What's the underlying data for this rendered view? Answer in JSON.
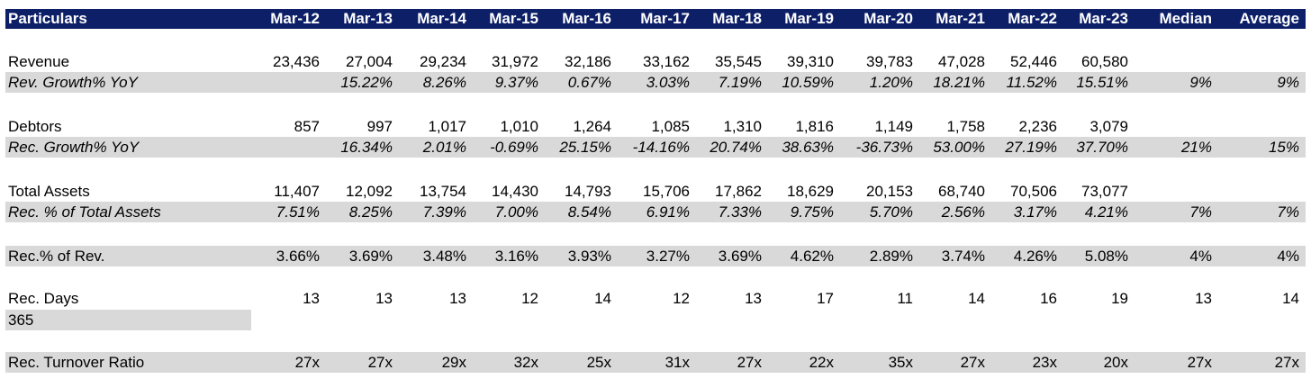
{
  "header": {
    "label": "Particulars",
    "columns": [
      "Mar-12",
      "Mar-13",
      "Mar-14",
      "Mar-15",
      "Mar-16",
      "Mar-17",
      "Mar-18",
      "Mar-19",
      "Mar-20",
      "Mar-21",
      "Mar-22",
      "Mar-23",
      "Median",
      "Average"
    ]
  },
  "rows": [
    {
      "label": "Revenue",
      "values": [
        "23,436",
        "27,004",
        "29,234",
        "31,972",
        "32,186",
        "33,162",
        "35,545",
        "39,310",
        "39,783",
        "47,028",
        "52,446",
        "60,580",
        "",
        ""
      ]
    },
    {
      "label": "Rev. Growth% YoY",
      "values": [
        "",
        "15.22%",
        "8.26%",
        "9.37%",
        "0.67%",
        "3.03%",
        "7.19%",
        "10.59%",
        "1.20%",
        "18.21%",
        "11.52%",
        "15.51%",
        "9%",
        "9%"
      ]
    },
    {
      "label": "Debtors",
      "values": [
        "857",
        "997",
        "1,017",
        "1,010",
        "1,264",
        "1,085",
        "1,310",
        "1,816",
        "1,149",
        "1,758",
        "2,236",
        "3,079",
        "",
        ""
      ]
    },
    {
      "label": "Rec. Growth% YoY",
      "values": [
        "",
        "16.34%",
        "2.01%",
        "-0.69%",
        "25.15%",
        "-14.16%",
        "20.74%",
        "38.63%",
        "-36.73%",
        "53.00%",
        "27.19%",
        "37.70%",
        "21%",
        "15%"
      ]
    },
    {
      "label": "Total Assets",
      "values": [
        "11,407",
        "12,092",
        "13,754",
        "14,430",
        "14,793",
        "15,706",
        "17,862",
        "18,629",
        "20,153",
        "68,740",
        "70,506",
        "73,077",
        "",
        ""
      ]
    },
    {
      "label": "Rec. % of Total Assets",
      "values": [
        "7.51%",
        "8.25%",
        "7.39%",
        "7.00%",
        "8.54%",
        "6.91%",
        "7.33%",
        "9.75%",
        "5.70%",
        "2.56%",
        "3.17%",
        "4.21%",
        "7%",
        "7%"
      ]
    },
    {
      "label": "Rec.% of Rev.",
      "values": [
        "3.66%",
        "3.69%",
        "3.48%",
        "3.16%",
        "3.93%",
        "3.27%",
        "3.69%",
        "4.62%",
        "2.89%",
        "3.74%",
        "4.26%",
        "5.08%",
        "4%",
        "4%"
      ]
    },
    {
      "label": "Rec. Days",
      "values": [
        "13",
        "13",
        "13",
        "12",
        "14",
        "12",
        "13",
        "17",
        "11",
        "14",
        "16",
        "19",
        "13",
        "14"
      ]
    },
    {
      "label": "Rec. Turnover Ratio",
      "values": [
        "27x",
        "27x",
        "29x",
        "32x",
        "25x",
        "31x",
        "27x",
        "22x",
        "35x",
        "27x",
        "23x",
        "20x",
        "27x",
        "27x"
      ]
    }
  ],
  "days_in_year": "365",
  "colors": {
    "header_bg": "#0d2067",
    "header_text": "#ffffff",
    "shade": "#d9d9d9"
  }
}
